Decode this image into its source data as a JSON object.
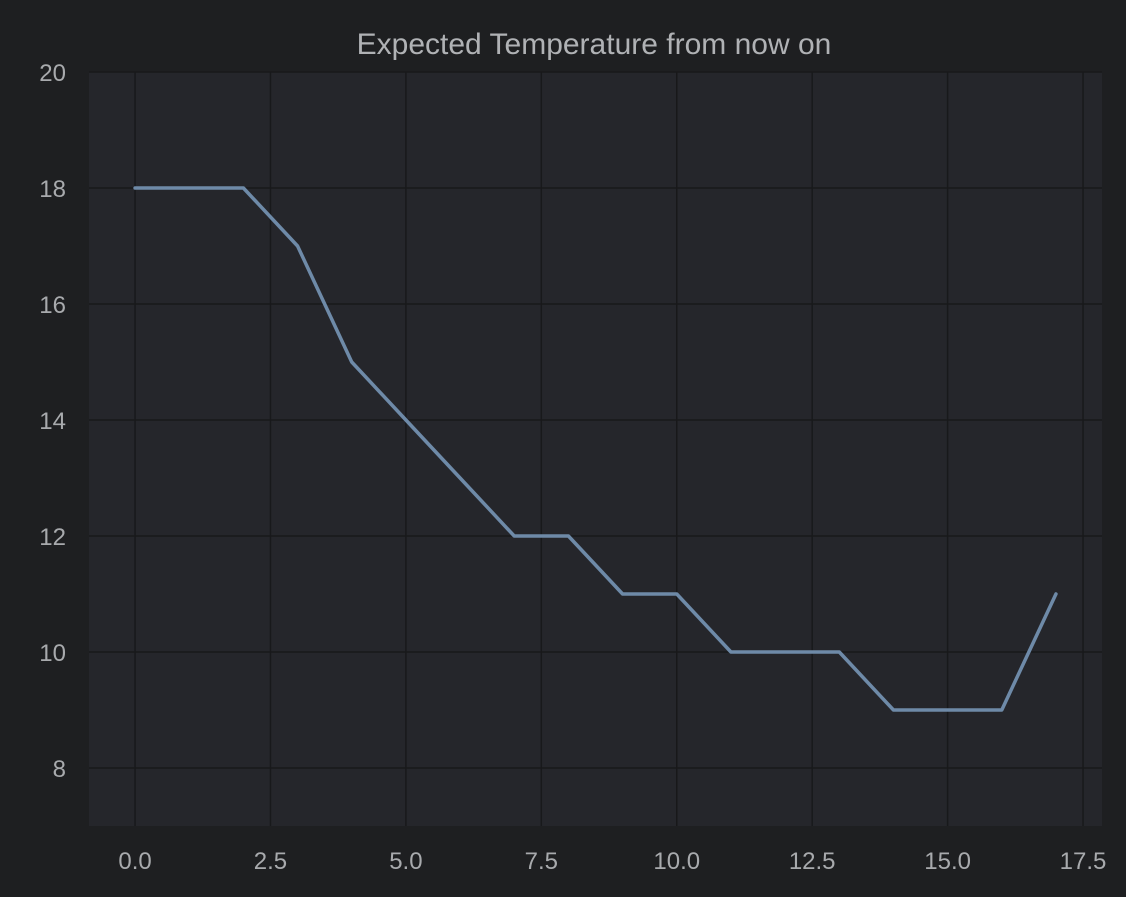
{
  "colors": {
    "page_background": "#1e1f21",
    "plot_background": "#25262b",
    "grid": "#18191b",
    "line": "#6e8aa8",
    "text": "#a8aaad",
    "title_text": "#b0b2b5"
  },
  "chart_data": {
    "type": "line",
    "title": "Expected Temperature from now on",
    "xlabel": "",
    "ylabel": "",
    "grid": true,
    "legend": "none",
    "xlim": [
      -0.85,
      17.85
    ],
    "ylim": [
      7,
      20
    ],
    "x_ticks": [
      0.0,
      2.5,
      5.0,
      7.5,
      10.0,
      12.5,
      15.0,
      17.5
    ],
    "x_tick_labels": [
      "0.0",
      "2.5",
      "5.0",
      "7.5",
      "10.0",
      "12.5",
      "15.0",
      "17.5"
    ],
    "y_ticks": [
      8,
      10,
      12,
      14,
      16,
      18,
      20
    ],
    "y_tick_labels": [
      "8",
      "10",
      "12",
      "14",
      "16",
      "18",
      "20"
    ],
    "series": [
      {
        "x": [
          0,
          1,
          2,
          3,
          4,
          5,
          6,
          7,
          8,
          9,
          10,
          11,
          12,
          13,
          14,
          15,
          16,
          17
        ],
        "y": [
          18,
          18,
          18,
          17,
          15,
          14,
          13,
          12,
          12,
          11,
          11,
          10,
          10,
          10,
          9,
          9,
          9,
          11
        ]
      }
    ]
  }
}
